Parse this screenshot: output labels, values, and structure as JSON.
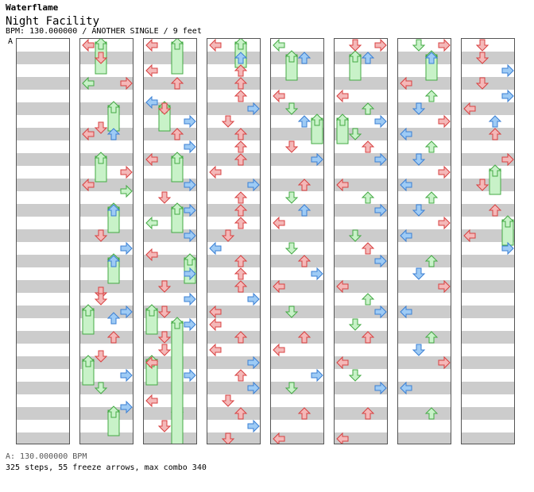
{
  "song": {
    "artist": "Waterflame",
    "title": "Night Facility",
    "meta": "BPM: 130.000000 / ANOTHER SINGLE / 9 feet",
    "section_tag": "A"
  },
  "footer": {
    "bpm_line": "A: 130.000000 BPM",
    "stats_line": "325 steps, 55 freeze arrows, max combo 340"
  },
  "colors": {
    "red_arrow": "#f4b8b8",
    "red_stroke": "#d84040",
    "blue_arrow": "#9ecbf5",
    "blue_stroke": "#3a7fd4",
    "freeze_fill": "#c8f2c8",
    "freeze_stroke": "#44aa44"
  },
  "icons": [
    "left-arrow-icon",
    "down-arrow-icon",
    "up-arrow-icon",
    "right-arrow-icon",
    "freeze-arrow-icon"
  ],
  "chart": {
    "lanes": [
      "left",
      "down",
      "up",
      "right"
    ],
    "columns": [
      {
        "notes": [],
        "freezes": []
      },
      {
        "notes": [
          [
            0,
            0,
            1
          ],
          [
            1,
            2,
            1
          ],
          [
            0,
            6,
            2
          ],
          [
            3,
            6,
            1
          ],
          [
            1,
            13,
            1
          ],
          [
            0,
            14,
            1
          ],
          [
            2,
            14,
            0
          ],
          [
            3,
            20,
            1
          ],
          [
            0,
            22,
            1
          ],
          [
            3,
            23,
            2
          ],
          [
            2,
            26,
            0
          ],
          [
            1,
            30,
            1
          ],
          [
            3,
            32,
            0
          ],
          [
            2,
            34,
            0
          ],
          [
            1,
            39,
            1
          ],
          [
            1,
            40,
            1
          ],
          [
            3,
            42,
            0
          ],
          [
            2,
            43,
            0
          ],
          [
            2,
            46,
            1
          ],
          [
            1,
            49,
            1
          ],
          [
            3,
            52,
            0
          ],
          [
            1,
            54,
            2
          ],
          [
            3,
            57,
            0
          ]
        ],
        "freezes": [
          [
            1,
            0,
            5
          ],
          [
            2,
            10,
            14
          ],
          [
            1,
            18,
            22
          ],
          [
            2,
            26,
            30
          ],
          [
            2,
            34,
            38
          ],
          [
            0,
            42,
            46
          ],
          [
            0,
            50,
            54
          ],
          [
            2,
            58,
            62
          ]
        ]
      },
      {
        "notes": [
          [
            0,
            0,
            1
          ],
          [
            0,
            4,
            1
          ],
          [
            2,
            6,
            1
          ],
          [
            0,
            9,
            0
          ],
          [
            1,
            10,
            1
          ],
          [
            3,
            12,
            0
          ],
          [
            2,
            14,
            1
          ],
          [
            3,
            16,
            0
          ],
          [
            0,
            18,
            1
          ],
          [
            3,
            22,
            0
          ],
          [
            1,
            24,
            1
          ],
          [
            3,
            26,
            0
          ],
          [
            0,
            28,
            2
          ],
          [
            3,
            30,
            0
          ],
          [
            0,
            33,
            1
          ],
          [
            3,
            36,
            0
          ],
          [
            1,
            38,
            1
          ],
          [
            3,
            40,
            0
          ],
          [
            1,
            42,
            1
          ],
          [
            3,
            44,
            0
          ],
          [
            1,
            46,
            1
          ],
          [
            1,
            48,
            1
          ],
          [
            0,
            50,
            1
          ],
          [
            3,
            52,
            0
          ],
          [
            0,
            56,
            1
          ],
          [
            1,
            60,
            1
          ]
        ],
        "freezes": [
          [
            2,
            0,
            5
          ],
          [
            1,
            10,
            14
          ],
          [
            2,
            18,
            22
          ],
          [
            2,
            26,
            30
          ],
          [
            3,
            34,
            38
          ],
          [
            0,
            42,
            46
          ],
          [
            0,
            50,
            54
          ],
          [
            2,
            58,
            62
          ],
          [
            2,
            44,
            72
          ]
        ]
      },
      {
        "notes": [
          [
            0,
            0,
            1
          ],
          [
            2,
            2,
            0
          ],
          [
            2,
            4,
            1
          ],
          [
            2,
            6,
            1
          ],
          [
            2,
            8,
            1
          ],
          [
            3,
            10,
            0
          ],
          [
            1,
            12,
            1
          ],
          [
            2,
            14,
            1
          ],
          [
            2,
            16,
            1
          ],
          [
            2,
            18,
            1
          ],
          [
            0,
            20,
            1
          ],
          [
            3,
            22,
            0
          ],
          [
            2,
            24,
            1
          ],
          [
            2,
            26,
            1
          ],
          [
            2,
            28,
            1
          ],
          [
            1,
            30,
            1
          ],
          [
            0,
            32,
            0
          ],
          [
            2,
            34,
            1
          ],
          [
            2,
            36,
            1
          ],
          [
            2,
            38,
            1
          ],
          [
            3,
            40,
            0
          ],
          [
            0,
            42,
            1
          ],
          [
            0,
            44,
            1
          ],
          [
            2,
            46,
            1
          ],
          [
            0,
            48,
            1
          ],
          [
            3,
            50,
            0
          ],
          [
            2,
            52,
            1
          ],
          [
            3,
            54,
            0
          ],
          [
            1,
            56,
            1
          ],
          [
            2,
            58,
            1
          ],
          [
            3,
            60,
            0
          ],
          [
            1,
            62,
            1
          ]
        ],
        "freezes": [
          [
            2,
            0,
            4
          ]
        ]
      },
      {
        "notes": [
          [
            0,
            0,
            3
          ],
          [
            2,
            2,
            0
          ],
          [
            0,
            8,
            1
          ],
          [
            1,
            10,
            3
          ],
          [
            2,
            12,
            0
          ],
          [
            1,
            16,
            1
          ],
          [
            3,
            18,
            0
          ],
          [
            2,
            22,
            1
          ],
          [
            1,
            24,
            3
          ],
          [
            2,
            26,
            0
          ],
          [
            0,
            28,
            1
          ],
          [
            1,
            32,
            3
          ],
          [
            2,
            34,
            1
          ],
          [
            3,
            36,
            0
          ],
          [
            0,
            38,
            1
          ],
          [
            1,
            42,
            3
          ],
          [
            2,
            46,
            1
          ],
          [
            0,
            48,
            1
          ],
          [
            3,
            52,
            0
          ],
          [
            1,
            54,
            3
          ],
          [
            2,
            58,
            1
          ],
          [
            0,
            62,
            1
          ]
        ],
        "freezes": [
          [
            1,
            2,
            6
          ],
          [
            3,
            12,
            16
          ]
        ]
      },
      {
        "notes": [
          [
            1,
            0,
            1
          ],
          [
            2,
            2,
            0
          ],
          [
            3,
            0,
            1
          ],
          [
            0,
            8,
            1
          ],
          [
            2,
            10,
            3
          ],
          [
            3,
            12,
            0
          ],
          [
            1,
            14,
            3
          ],
          [
            2,
            16,
            1
          ],
          [
            3,
            18,
            0
          ],
          [
            0,
            22,
            1
          ],
          [
            2,
            24,
            3
          ],
          [
            3,
            26,
            0
          ],
          [
            1,
            30,
            3
          ],
          [
            2,
            32,
            1
          ],
          [
            3,
            34,
            0
          ],
          [
            0,
            38,
            1
          ],
          [
            2,
            40,
            3
          ],
          [
            3,
            42,
            0
          ],
          [
            1,
            44,
            3
          ],
          [
            2,
            46,
            1
          ],
          [
            0,
            50,
            1
          ],
          [
            1,
            52,
            3
          ],
          [
            3,
            54,
            0
          ],
          [
            2,
            58,
            1
          ],
          [
            0,
            62,
            1
          ]
        ],
        "freezes": [
          [
            1,
            2,
            6
          ],
          [
            0,
            12,
            16
          ]
        ]
      },
      {
        "notes": [
          [
            1,
            0,
            3
          ],
          [
            2,
            2,
            0
          ],
          [
            3,
            0,
            1
          ],
          [
            0,
            6,
            1
          ],
          [
            2,
            8,
            3
          ],
          [
            1,
            10,
            0
          ],
          [
            3,
            12,
            1
          ],
          [
            0,
            14,
            0
          ],
          [
            2,
            16,
            3
          ],
          [
            1,
            18,
            0
          ],
          [
            3,
            20,
            1
          ],
          [
            0,
            22,
            0
          ],
          [
            2,
            24,
            3
          ],
          [
            1,
            26,
            0
          ],
          [
            3,
            28,
            1
          ],
          [
            0,
            30,
            0
          ],
          [
            2,
            34,
            3
          ],
          [
            1,
            36,
            0
          ],
          [
            3,
            38,
            1
          ],
          [
            0,
            42,
            0
          ],
          [
            2,
            46,
            3
          ],
          [
            1,
            48,
            0
          ],
          [
            3,
            50,
            1
          ],
          [
            0,
            54,
            0
          ],
          [
            2,
            58,
            3
          ]
        ],
        "freezes": [
          [
            2,
            2,
            6
          ]
        ]
      },
      {
        "notes": [
          [
            1,
            0,
            1
          ],
          [
            1,
            2,
            1
          ],
          [
            3,
            4,
            0
          ],
          [
            1,
            6,
            1
          ],
          [
            3,
            8,
            0
          ],
          [
            0,
            10,
            1
          ],
          [
            2,
            12,
            0
          ],
          [
            2,
            14,
            1
          ],
          [
            3,
            18,
            1
          ],
          [
            1,
            22,
            1
          ],
          [
            2,
            26,
            1
          ],
          [
            0,
            30,
            1
          ],
          [
            3,
            32,
            0
          ]
        ],
        "freezes": [
          [
            2,
            20,
            24
          ],
          [
            3,
            28,
            32
          ]
        ]
      }
    ]
  }
}
